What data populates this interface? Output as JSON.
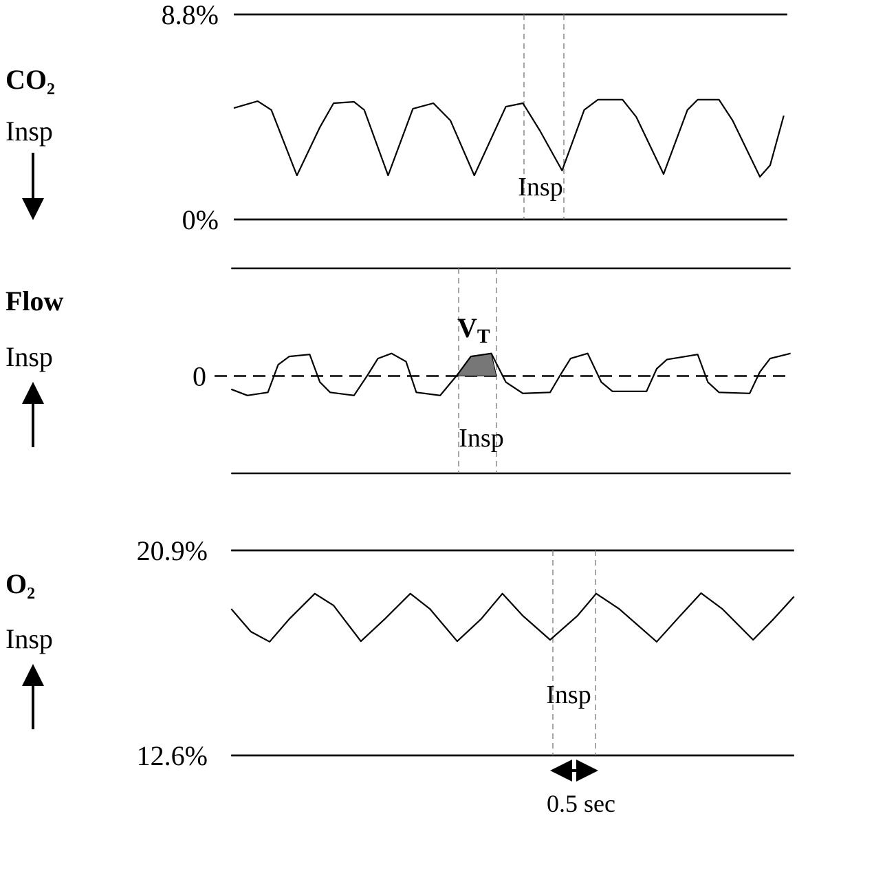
{
  "chart_data": [
    {
      "type": "line",
      "title": "CO₂",
      "direction_label": "Insp",
      "arrow": "down",
      "annotation": "Insp",
      "color": "#000000",
      "xlim": [
        0,
        6.49
      ],
      "ylim": [
        0,
        8.8
      ],
      "yticks": [
        {
          "value": 0,
          "label": "0%"
        },
        {
          "value": 8.8,
          "label": "8.8%"
        }
      ],
      "x": [
        0,
        0.28,
        0.44,
        0.74,
        1.01,
        1.17,
        1.41,
        1.53,
        1.81,
        2.1,
        2.34,
        2.54,
        2.82,
        3.19,
        3.39,
        3.59,
        3.85,
        4.11,
        4.27,
        4.56,
        4.72,
        5.04,
        5.32,
        5.44,
        5.69,
        5.85,
        6.17,
        6.29,
        6.45
      ],
      "values": [
        4.78,
        5.08,
        4.7,
        1.89,
        3.96,
        4.99,
        5.05,
        4.7,
        1.89,
        4.75,
        4.99,
        4.25,
        1.89,
        4.84,
        4.99,
        3.81,
        2.1,
        4.7,
        5.14,
        5.14,
        4.4,
        1.95,
        4.7,
        5.14,
        5.14,
        4.25,
        1.83,
        2.33,
        4.46
      ]
    },
    {
      "type": "line",
      "title": "Flow",
      "direction_label": "Insp",
      "arrow": "up",
      "annotation": "Insp",
      "color": "#000000",
      "volume_label": {
        "text": "V",
        "sub": "T"
      },
      "xlim": [
        -0.03,
        6.53
      ],
      "ylim": [
        -0.95,
        1.05
      ],
      "yticks": [
        0
      ],
      "grid": "dashed",
      "x": [
        -0.03,
        0.16,
        0.4,
        0.52,
        0.65,
        0.89,
        1.01,
        1.13,
        1.41,
        1.57,
        1.69,
        1.85,
        2.02,
        2.14,
        2.42,
        2.62,
        2.78,
        3.02,
        3.19,
        3.39,
        3.71,
        3.83,
        3.95,
        4.15,
        4.31,
        4.44,
        4.84,
        4.96,
        5.08,
        5.44,
        5.56,
        5.69,
        6.05,
        6.17,
        6.29,
        6.53
      ],
      "values": [
        -0.13,
        -0.19,
        -0.16,
        0.11,
        0.19,
        0.21,
        -0.06,
        -0.16,
        -0.19,
        0.01,
        0.17,
        0.22,
        0.14,
        -0.16,
        -0.19,
        0.01,
        0.19,
        0.22,
        -0.06,
        -0.17,
        -0.16,
        0.01,
        0.17,
        0.22,
        -0.06,
        -0.15,
        -0.15,
        0.07,
        0.16,
        0.21,
        -0.06,
        -0.16,
        -0.17,
        0.04,
        0.17,
        0.22
      ]
    },
    {
      "type": "line",
      "title": "O₂",
      "direction_label": "Insp",
      "arrow": "up",
      "annotation": "Insp",
      "color": "#000000",
      "scale_bar": {
        "value": 0.5,
        "label": "0.5 sec"
      },
      "xlim": [
        -0.03,
        6.57
      ],
      "ylim": [
        12.6,
        20.9
      ],
      "yticks": [
        {
          "value": 12.6,
          "label": "12.6%"
        },
        {
          "value": 20.9,
          "label": "20.9%"
        }
      ],
      "x": [
        -0.03,
        0.2,
        0.42,
        0.65,
        0.95,
        1.17,
        1.49,
        1.77,
        2.07,
        2.3,
        2.62,
        2.9,
        3.15,
        3.39,
        3.71,
        4.03,
        4.25,
        4.52,
        4.96,
        5.2,
        5.48,
        5.73,
        6.09,
        6.33,
        6.57
      ],
      "values": [
        18.53,
        17.61,
        17.2,
        18.12,
        19.15,
        18.67,
        17.22,
        18.12,
        19.15,
        18.53,
        17.22,
        18.12,
        19.15,
        18.25,
        17.28,
        18.25,
        19.15,
        18.53,
        17.2,
        18.12,
        19.17,
        18.53,
        17.28,
        18.12,
        19.03
      ]
    }
  ]
}
